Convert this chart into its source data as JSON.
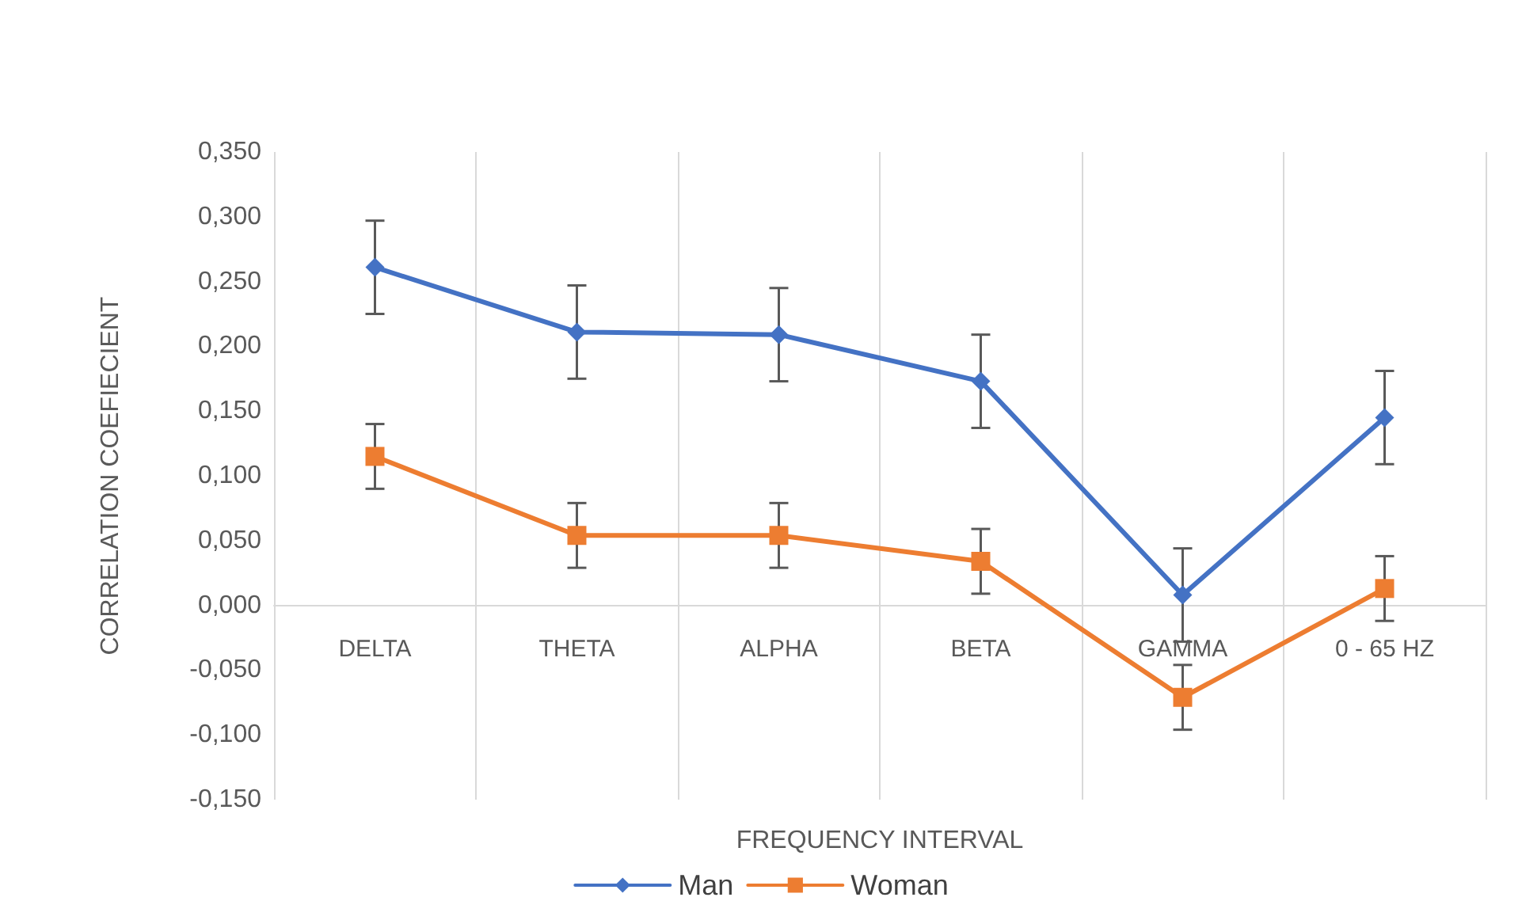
{
  "chart_data": {
    "type": "line",
    "xlabel": "FREQUENCY INTERVAL",
    "ylabel": "CORRELATION COEFIECIENT",
    "categories": [
      "DELTA",
      "THETA",
      "ALPHA",
      "BETA",
      "GAMMA",
      "0 - 65 HZ"
    ],
    "series": [
      {
        "name": "Man",
        "color": "#4472c4",
        "marker": "diamond",
        "values": [
          0.261,
          0.211,
          0.209,
          0.173,
          0.008,
          0.145
        ],
        "errors": [
          0.036,
          0.036,
          0.036,
          0.036,
          0.036,
          0.036
        ]
      },
      {
        "name": "Woman",
        "color": "#ed7d31",
        "marker": "square",
        "values": [
          0.115,
          0.054,
          0.054,
          0.034,
          -0.071,
          0.013
        ],
        "errors": [
          0.025,
          0.025,
          0.025,
          0.025,
          0.025,
          0.025
        ]
      }
    ],
    "ylim": [
      -0.15,
      0.35
    ],
    "yticks": [
      {
        "value": -0.15,
        "label": "-0,150"
      },
      {
        "value": -0.1,
        "label": "-0,100"
      },
      {
        "value": -0.05,
        "label": "-0,050"
      },
      {
        "value": 0,
        "label": "0,000"
      },
      {
        "value": 0.05,
        "label": "0,050"
      },
      {
        "value": 0.1,
        "label": "0,100"
      },
      {
        "value": 0.15,
        "label": "0,150"
      },
      {
        "value": 0.2,
        "label": "0,200"
      },
      {
        "value": 0.25,
        "label": "0,250"
      },
      {
        "value": 0.3,
        "label": "0,300"
      },
      {
        "value": 0.35,
        "label": "0,350"
      }
    ],
    "grid": "x",
    "legend": "bottom",
    "line_style": "solid"
  }
}
